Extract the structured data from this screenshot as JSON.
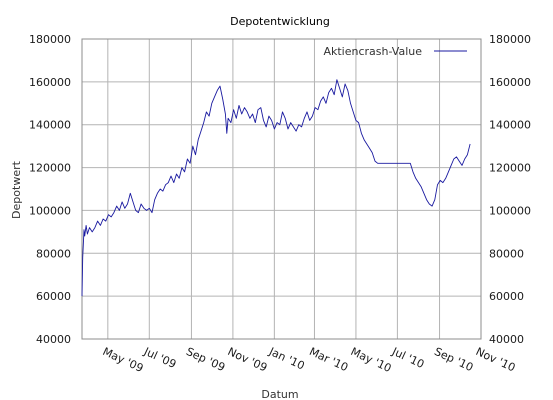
{
  "chart_data": {
    "type": "line",
    "title": "Depotentwicklung",
    "xlabel": "Datum",
    "ylabel": "Depotwert",
    "x_axis_type": "date",
    "x_range": [
      "2009-03-24",
      "2010-11-01"
    ],
    "ylim": [
      40000,
      180000
    ],
    "y_ticks": [
      40000,
      60000,
      80000,
      100000,
      120000,
      140000,
      160000,
      180000
    ],
    "y_tick_labels": [
      "40000",
      "60000",
      "80000",
      "100000",
      "120000",
      "140000",
      "160000",
      "180000"
    ],
    "y_axis_mirrored_right": true,
    "x_ticks": [
      {
        "date": "2009-05-01",
        "label": "May '09"
      },
      {
        "date": "2009-07-01",
        "label": "Jul '09"
      },
      {
        "date": "2009-09-01",
        "label": "Sep '09"
      },
      {
        "date": "2009-11-01",
        "label": "Nov '09"
      },
      {
        "date": "2010-01-01",
        "label": "Jan '10"
      },
      {
        "date": "2010-03-01",
        "label": "Mar '10"
      },
      {
        "date": "2010-05-01",
        "label": "May '10"
      },
      {
        "date": "2010-07-01",
        "label": "Jul '10"
      },
      {
        "date": "2010-09-01",
        "label": "Sep '10"
      },
      {
        "date": "2010-11-01",
        "label": "Nov '10"
      }
    ],
    "grid": true,
    "legend_position": "top-right",
    "colors": {
      "series": "#1a1aa0",
      "grid": "#b4b4b4",
      "frame": "#8c8c8c"
    },
    "series": [
      {
        "name": "Aktiencrash-Value",
        "x": [
          "2009-03-24",
          "2009-03-25",
          "2009-03-26",
          "2009-03-27",
          "2009-03-28",
          "2009-03-30",
          "2009-04-01",
          "2009-04-04",
          "2009-04-08",
          "2009-04-12",
          "2009-04-16",
          "2009-04-20",
          "2009-04-24",
          "2009-04-28",
          "2009-05-02",
          "2009-05-06",
          "2009-05-10",
          "2009-05-14",
          "2009-05-18",
          "2009-05-22",
          "2009-05-26",
          "2009-05-30",
          "2009-06-03",
          "2009-06-07",
          "2009-06-11",
          "2009-06-15",
          "2009-06-19",
          "2009-06-23",
          "2009-06-27",
          "2009-07-01",
          "2009-07-05",
          "2009-07-09",
          "2009-07-13",
          "2009-07-17",
          "2009-07-21",
          "2009-07-25",
          "2009-07-29",
          "2009-08-02",
          "2009-08-06",
          "2009-08-10",
          "2009-08-14",
          "2009-08-18",
          "2009-08-22",
          "2009-08-26",
          "2009-08-30",
          "2009-09-03",
          "2009-09-07",
          "2009-09-11",
          "2009-09-15",
          "2009-09-19",
          "2009-09-23",
          "2009-09-27",
          "2009-10-01",
          "2009-10-05",
          "2009-10-09",
          "2009-10-13",
          "2009-10-17",
          "2009-10-21",
          "2009-10-23",
          "2009-10-25",
          "2009-10-29",
          "2009-11-02",
          "2009-11-06",
          "2009-11-10",
          "2009-11-14",
          "2009-11-18",
          "2009-11-22",
          "2009-11-26",
          "2009-11-30",
          "2009-12-04",
          "2009-12-08",
          "2009-12-12",
          "2009-12-16",
          "2009-12-20",
          "2009-12-24",
          "2009-12-28",
          "2010-01-01",
          "2010-01-05",
          "2010-01-09",
          "2010-01-13",
          "2010-01-17",
          "2010-01-21",
          "2010-01-25",
          "2010-01-29",
          "2010-02-02",
          "2010-02-06",
          "2010-02-10",
          "2010-02-14",
          "2010-02-18",
          "2010-02-22",
          "2010-02-26",
          "2010-03-02",
          "2010-03-06",
          "2010-03-10",
          "2010-03-14",
          "2010-03-18",
          "2010-03-22",
          "2010-03-26",
          "2010-03-30",
          "2010-04-03",
          "2010-04-07",
          "2010-04-11",
          "2010-04-15",
          "2010-04-19",
          "2010-04-23",
          "2010-04-27",
          "2010-05-01",
          "2010-05-05",
          "2010-05-09",
          "2010-05-13",
          "2010-05-17",
          "2010-05-21",
          "2010-05-25",
          "2010-05-29",
          "2010-06-02",
          "2010-06-06",
          "2010-06-10",
          "2010-06-14",
          "2010-06-18",
          "2010-06-22",
          "2010-06-26",
          "2010-06-30",
          "2010-07-04",
          "2010-07-08",
          "2010-07-12",
          "2010-07-16",
          "2010-07-20",
          "2010-07-24",
          "2010-07-28",
          "2010-08-01",
          "2010-08-05",
          "2010-08-09",
          "2010-08-13",
          "2010-08-17",
          "2010-08-21",
          "2010-08-25",
          "2010-08-29",
          "2010-09-02",
          "2010-09-06",
          "2010-09-10",
          "2010-09-14",
          "2010-09-18",
          "2010-09-22",
          "2010-09-26",
          "2010-09-30",
          "2010-10-04",
          "2010-10-08",
          "2010-10-12",
          "2010-10-16"
        ],
        "values": [
          60000,
          78000,
          85000,
          91000,
          88000,
          93000,
          89000,
          92000,
          90000,
          92000,
          95000,
          93000,
          96000,
          95000,
          98000,
          97000,
          99000,
          102000,
          100000,
          104000,
          101000,
          103000,
          108000,
          104000,
          100000,
          99000,
          103000,
          101000,
          100000,
          101000,
          99000,
          105000,
          108000,
          110000,
          109000,
          112000,
          113000,
          116000,
          113000,
          117000,
          115000,
          120000,
          118000,
          124000,
          122000,
          130000,
          126000,
          133000,
          137000,
          141000,
          146000,
          144000,
          150000,
          153000,
          156000,
          158000,
          152000,
          145000,
          136000,
          143000,
          141000,
          147000,
          143000,
          149000,
          145000,
          148000,
          146000,
          143000,
          145000,
          141000,
          147000,
          148000,
          142000,
          139000,
          144000,
          142000,
          138000,
          141000,
          140000,
          146000,
          143000,
          138000,
          141000,
          139000,
          137000,
          140000,
          139000,
          143000,
          146000,
          142000,
          144000,
          148000,
          147000,
          151000,
          153000,
          150000,
          155000,
          157000,
          154000,
          161000,
          157000,
          153000,
          159000,
          156000,
          150000,
          146000,
          142000,
          141000,
          136000,
          133000,
          131000,
          129000,
          127000,
          123000,
          122000,
          122000,
          122000,
          122000,
          122000,
          122000,
          122000,
          122000,
          122000,
          122000,
          122000,
          122000,
          122000,
          118000,
          115000,
          113000,
          111000,
          108000,
          105000,
          103000,
          102000,
          105000,
          112000,
          114000,
          113000,
          115000,
          118000,
          121000,
          124000,
          125000,
          123000,
          121000,
          124000,
          126000,
          131000
        ]
      }
    ]
  }
}
